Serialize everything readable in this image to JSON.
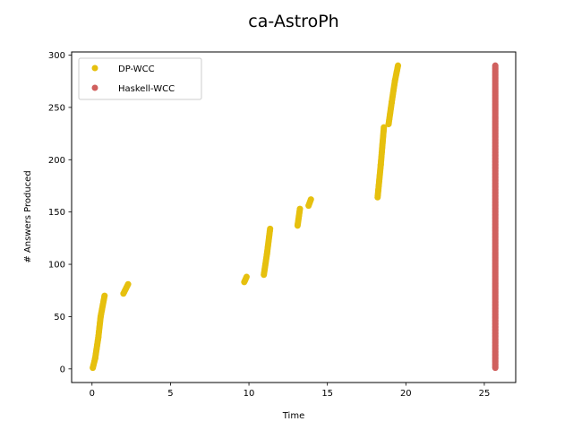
{
  "chart_data": {
    "type": "scatter",
    "title": "ca-AstroPh",
    "xlabel": "Time",
    "ylabel": "# Answers Produced",
    "xlim": [
      -1.3,
      27.0
    ],
    "ylim": [
      -13,
      303
    ],
    "xticks": [
      0,
      5,
      10,
      15,
      20,
      25
    ],
    "yticks": [
      0,
      50,
      100,
      150,
      200,
      250,
      300
    ],
    "grid": false,
    "legend": "top-left",
    "series": [
      {
        "name": "DP-WCC",
        "color": "#e6c00e",
        "segments": [
          {
            "x0": 0.05,
            "y0": 1,
            "x1": 0.2,
            "y1": 10
          },
          {
            "x0": 0.2,
            "y0": 10,
            "x1": 0.4,
            "y1": 30
          },
          {
            "x0": 0.4,
            "y0": 30,
            "x1": 0.55,
            "y1": 50
          },
          {
            "x0": 0.55,
            "y0": 50,
            "x1": 0.8,
            "y1": 70
          },
          {
            "x0": 2.0,
            "y0": 72,
            "x1": 2.3,
            "y1": 81
          },
          {
            "x0": 9.7,
            "y0": 83,
            "x1": 9.85,
            "y1": 88
          },
          {
            "x0": 10.95,
            "y0": 90,
            "x1": 11.15,
            "y1": 110
          },
          {
            "x0": 11.15,
            "y0": 110,
            "x1": 11.35,
            "y1": 134
          },
          {
            "x0": 13.1,
            "y0": 137,
            "x1": 13.25,
            "y1": 153
          },
          {
            "x0": 13.8,
            "y0": 156,
            "x1": 13.95,
            "y1": 162
          },
          {
            "x0": 18.2,
            "y0": 164,
            "x1": 18.4,
            "y1": 195
          },
          {
            "x0": 18.4,
            "y0": 195,
            "x1": 18.6,
            "y1": 231
          },
          {
            "x0": 18.9,
            "y0": 234,
            "x1": 19.1,
            "y1": 255
          },
          {
            "x0": 19.1,
            "y0": 255,
            "x1": 19.3,
            "y1": 275
          },
          {
            "x0": 19.3,
            "y0": 275,
            "x1": 19.5,
            "y1": 290
          }
        ],
        "points_per_unit": 0.7
      },
      {
        "name": "Haskell-WCC",
        "color": "#d0605e",
        "segments": [
          {
            "x0": 25.7,
            "y0": 1,
            "x1": 25.7,
            "y1": 290
          }
        ],
        "points_per_unit": 1
      }
    ]
  }
}
